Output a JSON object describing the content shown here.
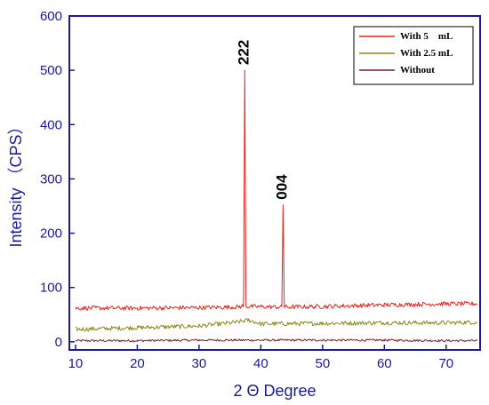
{
  "chart_data": {
    "type": "line",
    "title": "",
    "xlabel": "2 Θ Degree",
    "ylabel": "Intensity （CPS）",
    "xlim": [
      9,
      75.5
    ],
    "ylim": [
      -15,
      600
    ],
    "xticks": [
      "10",
      "20",
      "30",
      "40",
      "50",
      "60",
      "70"
    ],
    "yticks": [
      "0",
      "100",
      "200",
      "300",
      "400",
      "500",
      "600"
    ],
    "grid": false,
    "legend_position": "top-right",
    "series": [
      {
        "name": "With 5    mL",
        "color": "#e8231c",
        "points": [
          [
            10,
            62
          ],
          [
            20,
            62
          ],
          [
            30,
            63
          ],
          [
            36,
            64
          ],
          [
            37.2,
            66
          ],
          [
            37.4,
            500
          ],
          [
            37.6,
            65
          ],
          [
            43.4,
            64
          ],
          [
            43.6,
            252
          ],
          [
            43.8,
            64
          ],
          [
            50,
            65
          ],
          [
            60,
            68
          ],
          [
            70,
            70
          ],
          [
            75,
            70
          ]
        ]
      },
      {
        "name": "With 2.5 mL",
        "color": "#8a8a1a",
        "points": [
          [
            10,
            23
          ],
          [
            20,
            26
          ],
          [
            30,
            29
          ],
          [
            36,
            36
          ],
          [
            38,
            40
          ],
          [
            40,
            33
          ],
          [
            50,
            34
          ],
          [
            60,
            35
          ],
          [
            70,
            35
          ],
          [
            75,
            36
          ]
        ]
      },
      {
        "name": "Without",
        "color": "#7a1c2a",
        "points": [
          [
            10,
            2
          ],
          [
            20,
            2
          ],
          [
            30,
            3
          ],
          [
            40,
            3
          ],
          [
            50,
            3
          ],
          [
            60,
            3
          ],
          [
            70,
            2
          ],
          [
            75,
            2
          ]
        ]
      }
    ],
    "annotations": [
      {
        "text": "222",
        "x": 37.4
      },
      {
        "text": "004",
        "x": 43.6
      }
    ]
  }
}
